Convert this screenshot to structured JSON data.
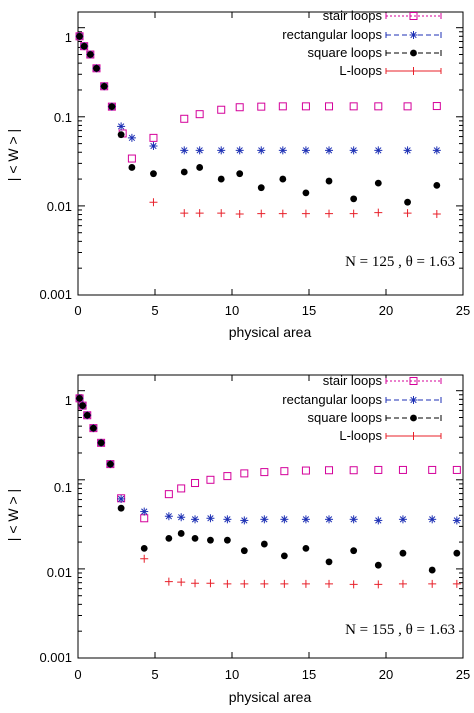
{
  "chart_data": [
    {
      "type": "scatter",
      "xlabel": "physical area",
      "ylabel": "| < W > |",
      "xlim": [
        0,
        25
      ],
      "ylim": [
        0.001,
        1.5
      ],
      "ylog": true,
      "xticks": [
        "0",
        "5",
        "10",
        "15",
        "20",
        "25"
      ],
      "yticks": [
        "0.001",
        "0.01",
        "0.1",
        "1"
      ],
      "legend_position": "top-right",
      "annotation": "N = 125 ,   θ = 1.63",
      "series": [
        {
          "name": "stair loops",
          "color": "#d4009a",
          "marker": "open-square",
          "x": [
            0.1,
            0.4,
            0.8,
            1.2,
            1.7,
            2.2,
            2.9,
            3.5,
            4.9,
            6.9,
            7.9,
            9.3,
            10.5,
            11.9,
            13.3,
            14.8,
            16.3,
            17.9,
            19.5,
            21.4,
            23.3
          ],
          "y": [
            0.8,
            0.62,
            0.5,
            0.35,
            0.22,
            0.13,
            0.065,
            0.034,
            0.058,
            0.095,
            0.107,
            0.12,
            0.128,
            0.13,
            0.131,
            0.131,
            0.131,
            0.131,
            0.131,
            0.131,
            0.132
          ]
        },
        {
          "name": "rectangular loops",
          "color": "#1c2fb4",
          "marker": "asterisk",
          "x": [
            0.1,
            0.4,
            0.8,
            1.2,
            1.7,
            2.2,
            2.8,
            3.5,
            4.9,
            6.9,
            7.9,
            9.3,
            10.5,
            11.9,
            13.3,
            14.8,
            16.3,
            17.9,
            19.5,
            21.4,
            23.3
          ],
          "y": [
            0.8,
            0.62,
            0.5,
            0.35,
            0.22,
            0.13,
            0.078,
            0.058,
            0.047,
            0.042,
            0.042,
            0.042,
            0.042,
            0.042,
            0.042,
            0.042,
            0.042,
            0.042,
            0.042,
            0.042,
            0.042
          ]
        },
        {
          "name": "square loops",
          "color": "#000000",
          "marker": "filled-circle",
          "x": [
            0.1,
            0.4,
            0.8,
            1.2,
            1.7,
            2.2,
            2.8,
            3.5,
            4.9,
            6.9,
            7.9,
            9.3,
            10.5,
            11.9,
            13.3,
            14.8,
            16.3,
            17.9,
            19.5,
            21.4,
            23.3
          ],
          "y": [
            0.8,
            0.62,
            0.5,
            0.35,
            0.22,
            0.13,
            0.063,
            0.027,
            0.023,
            0.024,
            0.027,
            0.02,
            0.023,
            0.016,
            0.02,
            0.014,
            0.019,
            0.012,
            0.018,
            0.011,
            0.017
          ]
        },
        {
          "name": "L-loops",
          "color": "#e8202a",
          "marker": "plus",
          "x": [
            4.9,
            6.9,
            7.9,
            9.3,
            10.5,
            11.9,
            13.3,
            14.8,
            16.3,
            17.9,
            19.5,
            21.4,
            23.3
          ],
          "y": [
            0.011,
            0.0083,
            0.0083,
            0.0083,
            0.0081,
            0.0082,
            0.0082,
            0.0082,
            0.0082,
            0.0082,
            0.0084,
            0.0083,
            0.0081
          ]
        }
      ]
    },
    {
      "type": "scatter",
      "xlabel": "physical area",
      "ylabel": "| < W > |",
      "xlim": [
        0,
        25
      ],
      "ylim": [
        0.001,
        1.5
      ],
      "ylog": true,
      "xticks": [
        "0",
        "5",
        "10",
        "15",
        "20",
        "25"
      ],
      "yticks": [
        "0.001",
        "0.01",
        "0.1",
        "1"
      ],
      "legend_position": "top-right",
      "annotation": "N = 155 ,  θ = 1.63",
      "series": [
        {
          "name": "stair loops",
          "color": "#d4009a",
          "marker": "open-square",
          "x": [
            0.1,
            0.3,
            0.6,
            1.0,
            1.5,
            2.1,
            2.8,
            4.3,
            5.9,
            6.7,
            7.6,
            8.6,
            9.7,
            10.8,
            12.1,
            13.4,
            14.8,
            16.3,
            17.9,
            19.5,
            21.1,
            23.0,
            24.6
          ],
          "y": [
            0.82,
            0.68,
            0.53,
            0.38,
            0.26,
            0.15,
            0.062,
            0.037,
            0.069,
            0.08,
            0.092,
            0.1,
            0.11,
            0.118,
            0.122,
            0.125,
            0.127,
            0.128,
            0.128,
            0.129,
            0.129,
            0.129,
            0.129
          ]
        },
        {
          "name": "rectangular loops",
          "color": "#1c2fb4",
          "marker": "asterisk",
          "x": [
            0.1,
            0.3,
            0.6,
            1.0,
            1.5,
            2.1,
            2.8,
            4.3,
            5.9,
            6.7,
            7.6,
            8.6,
            9.7,
            10.8,
            12.1,
            13.4,
            14.8,
            16.3,
            17.9,
            19.5,
            21.1,
            23.0,
            24.6
          ],
          "y": [
            0.82,
            0.68,
            0.53,
            0.38,
            0.26,
            0.15,
            0.061,
            0.044,
            0.039,
            0.038,
            0.036,
            0.037,
            0.036,
            0.035,
            0.036,
            0.036,
            0.036,
            0.036,
            0.036,
            0.035,
            0.036,
            0.036,
            0.035
          ]
        },
        {
          "name": "square loops",
          "color": "#000000",
          "marker": "filled-circle",
          "x": [
            0.1,
            0.3,
            0.6,
            1.0,
            1.5,
            2.1,
            2.8,
            4.3,
            5.9,
            6.7,
            7.6,
            8.6,
            9.7,
            10.8,
            12.1,
            13.4,
            14.8,
            16.3,
            17.9,
            19.5,
            21.1,
            23.0,
            24.6
          ],
          "y": [
            0.82,
            0.68,
            0.53,
            0.38,
            0.26,
            0.15,
            0.048,
            0.017,
            0.022,
            0.025,
            0.022,
            0.021,
            0.021,
            0.016,
            0.019,
            0.014,
            0.017,
            0.012,
            0.016,
            0.011,
            0.015,
            0.0097,
            0.015
          ]
        },
        {
          "name": "L-loops",
          "color": "#e8202a",
          "marker": "plus",
          "x": [
            4.3,
            5.9,
            6.7,
            7.6,
            8.6,
            9.7,
            10.8,
            12.1,
            13.4,
            14.8,
            16.3,
            17.9,
            19.5,
            21.1,
            23.0,
            24.6
          ],
          "y": [
            0.013,
            0.0072,
            0.0071,
            0.0069,
            0.0069,
            0.0068,
            0.0068,
            0.0068,
            0.0068,
            0.0068,
            0.0068,
            0.0067,
            0.0067,
            0.0068,
            0.0068,
            0.0068
          ]
        }
      ]
    }
  ]
}
